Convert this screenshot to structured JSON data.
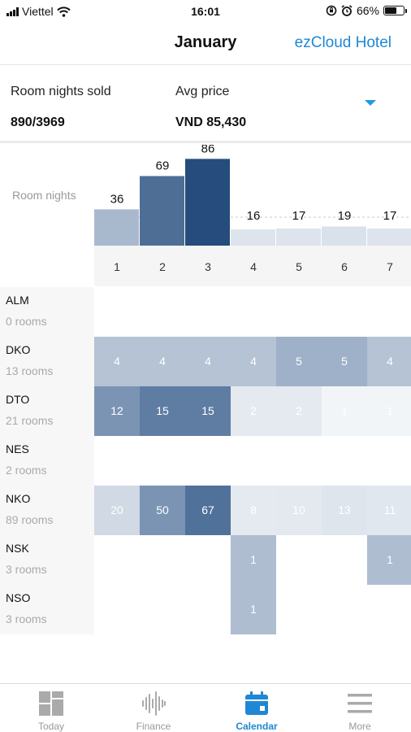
{
  "status_bar": {
    "carrier": "Viettel",
    "time": "16:01",
    "battery": "66%",
    "battery_level": 0.66
  },
  "header": {
    "title": "January",
    "hotel_link": "ezCloud Hotel"
  },
  "summary": {
    "room_nights_label": "Room nights sold",
    "room_nights_value": "890/3969",
    "avg_price_label": "Avg price",
    "avg_price_value": "VND 85,430"
  },
  "chart_data": {
    "type": "bar",
    "ylabel": "Room nights",
    "categories": [
      "1",
      "2",
      "3",
      "4",
      "5",
      "6",
      "7"
    ],
    "values": [
      36,
      69,
      86,
      16,
      17,
      19,
      17
    ],
    "series": [
      {
        "values": [
          36,
          69,
          86,
          16,
          17,
          19,
          17
        ]
      }
    ],
    "ylim": [
      0,
      100
    ],
    "grid": false,
    "colors": [
      "#a9b9cd",
      "#4f6e96",
      "#254c7c",
      "#dde4ec",
      "#dde4ec",
      "#d9e1ea",
      "#dde4ec"
    ]
  },
  "grid": {
    "rows": [
      {
        "name": "ALM",
        "rooms": "0 rooms",
        "cells": [
          "",
          "",
          "",
          "",
          "",
          "",
          ""
        ],
        "shades": [
          0,
          0,
          0,
          0,
          0,
          0,
          0
        ]
      },
      {
        "name": "DKO",
        "rooms": "13 rooms",
        "cells": [
          "4",
          "4",
          "4",
          "4",
          "5",
          "5",
          "4"
        ],
        "shades": [
          0.35,
          0.35,
          0.35,
          0.35,
          0.45,
          0.45,
          0.35
        ]
      },
      {
        "name": "DTO",
        "rooms": "21 rooms",
        "cells": [
          "12",
          "15",
          "15",
          "2",
          "2",
          "1",
          "1"
        ],
        "shades": [
          0.62,
          0.75,
          0.75,
          0.12,
          0.12,
          0.06,
          0.06
        ]
      },
      {
        "name": "NES",
        "rooms": "2 rooms",
        "cells": [
          "",
          "",
          "",
          "",
          "",
          "",
          ""
        ],
        "shades": [
          0,
          0,
          0,
          0,
          0,
          0,
          0
        ]
      },
      {
        "name": "NKO",
        "rooms": "89 rooms",
        "cells": [
          "20",
          "50",
          "67",
          "8",
          "10",
          "13",
          "11"
        ],
        "shades": [
          0.22,
          0.62,
          0.82,
          0.12,
          0.13,
          0.15,
          0.14
        ]
      },
      {
        "name": "NSK",
        "rooms": "3 rooms",
        "cells": [
          "",
          "",
          "",
          "1",
          "",
          "",
          "1"
        ],
        "shades": [
          0,
          0,
          0,
          0.38,
          0,
          0,
          0.38
        ]
      },
      {
        "name": "NSO",
        "rooms": "3 rooms",
        "cells": [
          "",
          "",
          "",
          "1",
          "",
          "",
          ""
        ],
        "shades": [
          0,
          0,
          0,
          0.38,
          0,
          0,
          0
        ]
      }
    ]
  },
  "tabbar": {
    "items": [
      {
        "label": "Today",
        "icon": "dashboard-icon"
      },
      {
        "label": "Finance",
        "icon": "waveform-icon"
      },
      {
        "label": "Calendar",
        "icon": "calendar-icon"
      },
      {
        "label": "More",
        "icon": "menu-icon"
      }
    ],
    "active": "Calendar"
  }
}
